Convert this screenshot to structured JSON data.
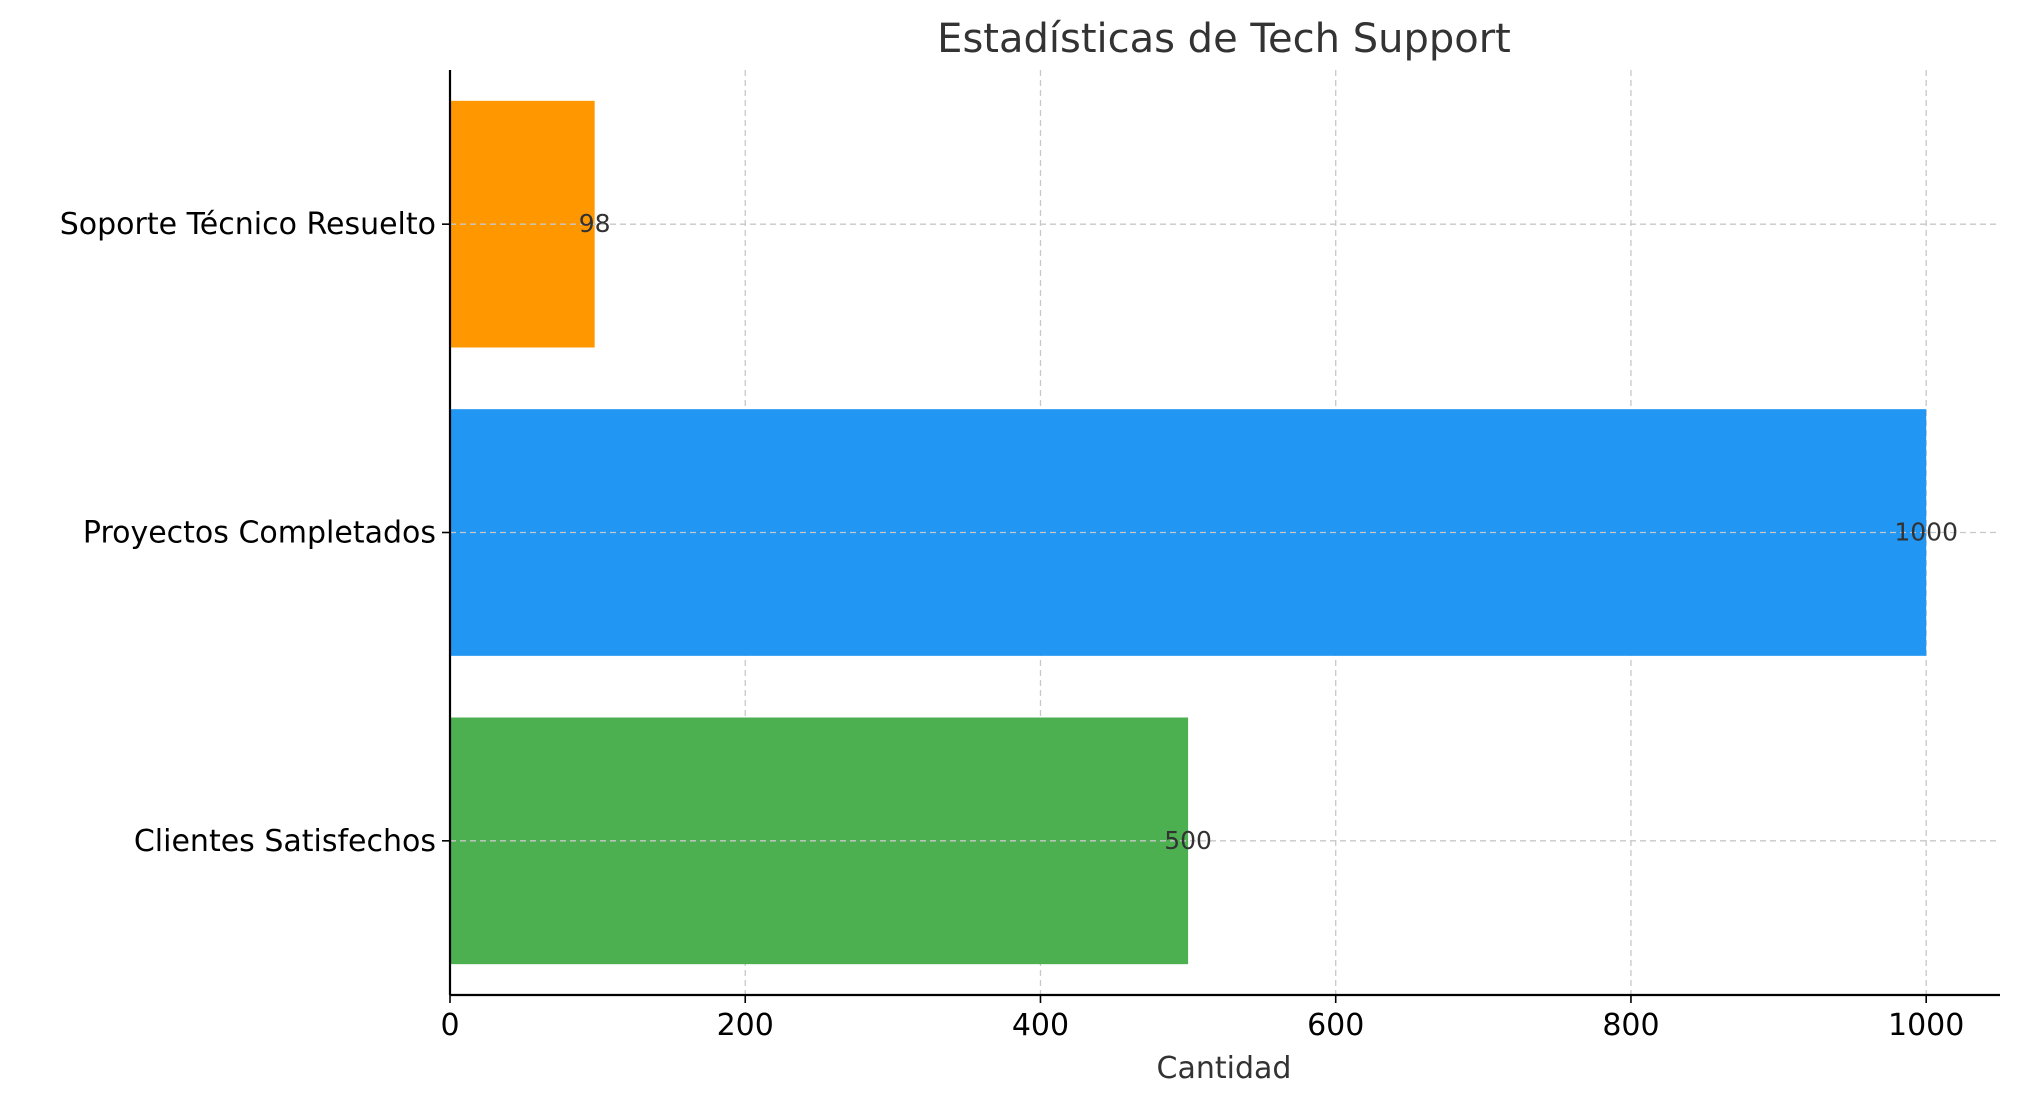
{
  "chart_data": {
    "type": "bar",
    "orientation": "horizontal",
    "title": "Estadísticas de Tech Support",
    "xlabel": "Cantidad",
    "ylabel": "",
    "categories": [
      "Clientes Satisfechos",
      "Proyectos Completados",
      "Soporte Técnico Resuelto"
    ],
    "values": [
      500,
      1000,
      98
    ],
    "data_labels": [
      "500",
      "1000",
      "98"
    ],
    "bar_colors": [
      "#4caf50",
      "#2196f3",
      "#ff9800"
    ],
    "xlim": [
      0,
      1050
    ],
    "x_ticks": [
      0,
      200,
      400,
      600,
      800,
      1000
    ],
    "x_tick_labels": [
      "0",
      "200",
      "400",
      "600",
      "800",
      "1000"
    ],
    "grid": true,
    "grid_style": "dashed",
    "legend": "none",
    "spines": [
      "left",
      "bottom"
    ]
  }
}
